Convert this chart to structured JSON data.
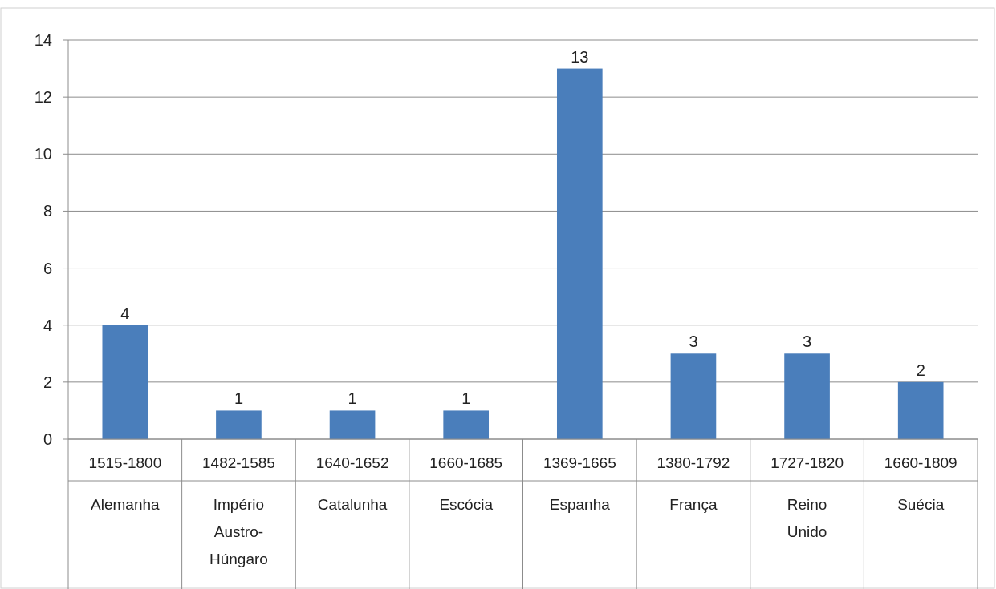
{
  "chart_data": {
    "type": "bar",
    "categories": [
      "1515-1800\nAlemanha",
      "1482-1585\nImpério\nAustro-\nHúngaro",
      "1640-1652\nCatalunha",
      "1660-1685\nEscócia",
      "1369-1665\nEspanha",
      "1380-1792\nFrança",
      "1727-1820\nReino\nUnido",
      "1660-1809\nSuécia"
    ],
    "values": [
      4,
      1,
      1,
      1,
      13,
      3,
      3,
      2
    ],
    "color": "#4a7ebb",
    "ylim": [
      0,
      14
    ],
    "yticks": [
      0,
      2,
      4,
      6,
      8,
      10,
      12,
      14
    ],
    "grid": "y",
    "data_labels": true
  }
}
